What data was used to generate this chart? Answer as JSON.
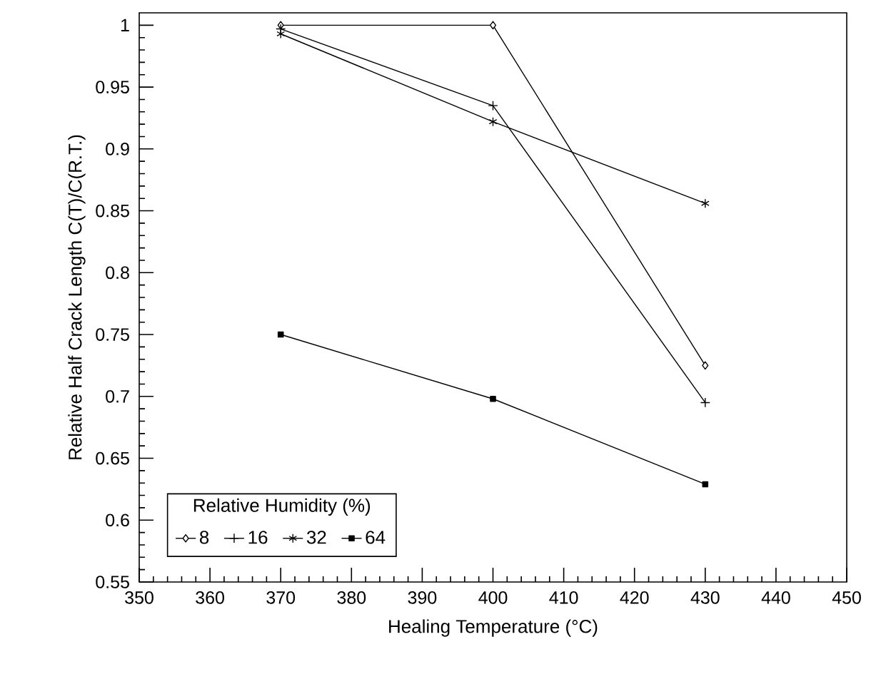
{
  "chart_data": {
    "type": "line",
    "xlabel": "Healing Temperature (°C)",
    "ylabel": "Relative Half Crack Length C(T)/C(R.T.)",
    "legend_title": "Relative Humidity (%)",
    "legend": "bottom left",
    "x": [
      370,
      400,
      430
    ],
    "series": [
      {
        "name": "8",
        "color": "#000000",
        "marker": "diamond",
        "values": [
          1.0,
          1.0,
          0.725
        ]
      },
      {
        "name": "16",
        "color": "#000000",
        "marker": "cross",
        "values": [
          0.997,
          0.935,
          0.695
        ]
      },
      {
        "name": "32",
        "color": "#000000",
        "marker": "cross",
        "values": [
          0.993,
          0.922,
          0.856
        ]
      },
      {
        "name": "64",
        "color": "#000000",
        "marker": "square",
        "values": [
          0.75,
          0.698,
          0.629
        ]
      }
    ],
    "xlim": [
      350,
      450
    ],
    "xticks": [
      350,
      360,
      370,
      380,
      390,
      400,
      410,
      420,
      430,
      440,
      450
    ],
    "ylim": [
      0.55,
      1.01
    ],
    "yticks": [
      0.55,
      0.6,
      0.65,
      0.7,
      0.75,
      0.8,
      0.85,
      0.9,
      0.95,
      1
    ],
    "grid": false
  }
}
